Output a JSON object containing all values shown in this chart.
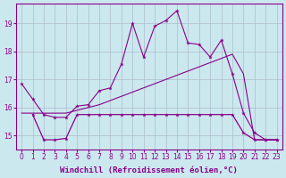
{
  "background_color": "#cce8ef",
  "grid_color": "#aabbcc",
  "line_color": "#880088",
  "xlabel": "Windchill (Refroidissement éolien,°C)",
  "xlabel_fontsize": 6.5,
  "tick_fontsize": 5.5,
  "xlim": [
    -0.5,
    23.5
  ],
  "ylim": [
    14.5,
    19.7
  ],
  "yticks": [
    15,
    16,
    17,
    18,
    19
  ],
  "xticks": [
    0,
    1,
    2,
    3,
    4,
    5,
    6,
    7,
    8,
    9,
    10,
    11,
    12,
    13,
    14,
    15,
    16,
    17,
    18,
    19,
    20,
    21,
    22,
    23
  ],
  "line1_x": [
    0,
    1,
    2,
    3,
    4,
    5,
    6,
    7,
    8,
    9,
    10,
    11,
    12,
    13,
    14,
    15,
    16,
    17,
    18,
    19,
    20,
    21,
    22,
    23
  ],
  "line1_y": [
    16.85,
    16.3,
    15.75,
    15.65,
    15.65,
    16.05,
    16.1,
    16.6,
    16.7,
    17.55,
    19.0,
    17.8,
    18.9,
    19.1,
    19.45,
    18.3,
    18.25,
    17.8,
    18.4,
    17.2,
    15.8,
    15.1,
    14.85,
    14.85
  ],
  "line2_x": [
    1,
    2,
    3,
    4,
    5,
    6,
    7,
    8,
    9,
    10,
    11,
    12,
    13,
    14,
    15,
    16,
    17,
    18,
    19,
    20,
    21,
    22,
    23
  ],
  "line2_y": [
    15.75,
    14.85,
    14.85,
    14.9,
    15.75,
    15.75,
    15.75,
    15.75,
    15.75,
    15.75,
    15.75,
    15.75,
    15.75,
    15.75,
    15.75,
    15.75,
    15.75,
    15.75,
    15.75,
    15.1,
    14.85,
    14.85,
    14.85
  ],
  "line3_x": [
    0,
    1,
    2,
    3,
    4,
    5,
    6,
    7,
    8,
    9,
    10,
    11,
    12,
    13,
    14,
    15,
    16,
    17,
    18,
    19,
    20,
    21,
    22,
    23
  ],
  "line3_y": [
    15.8,
    15.8,
    15.8,
    15.8,
    15.8,
    15.9,
    16.0,
    16.1,
    16.25,
    16.4,
    16.55,
    16.7,
    16.85,
    17.0,
    17.15,
    17.3,
    17.45,
    17.6,
    17.75,
    17.9,
    17.2,
    14.85,
    14.85,
    14.85
  ]
}
